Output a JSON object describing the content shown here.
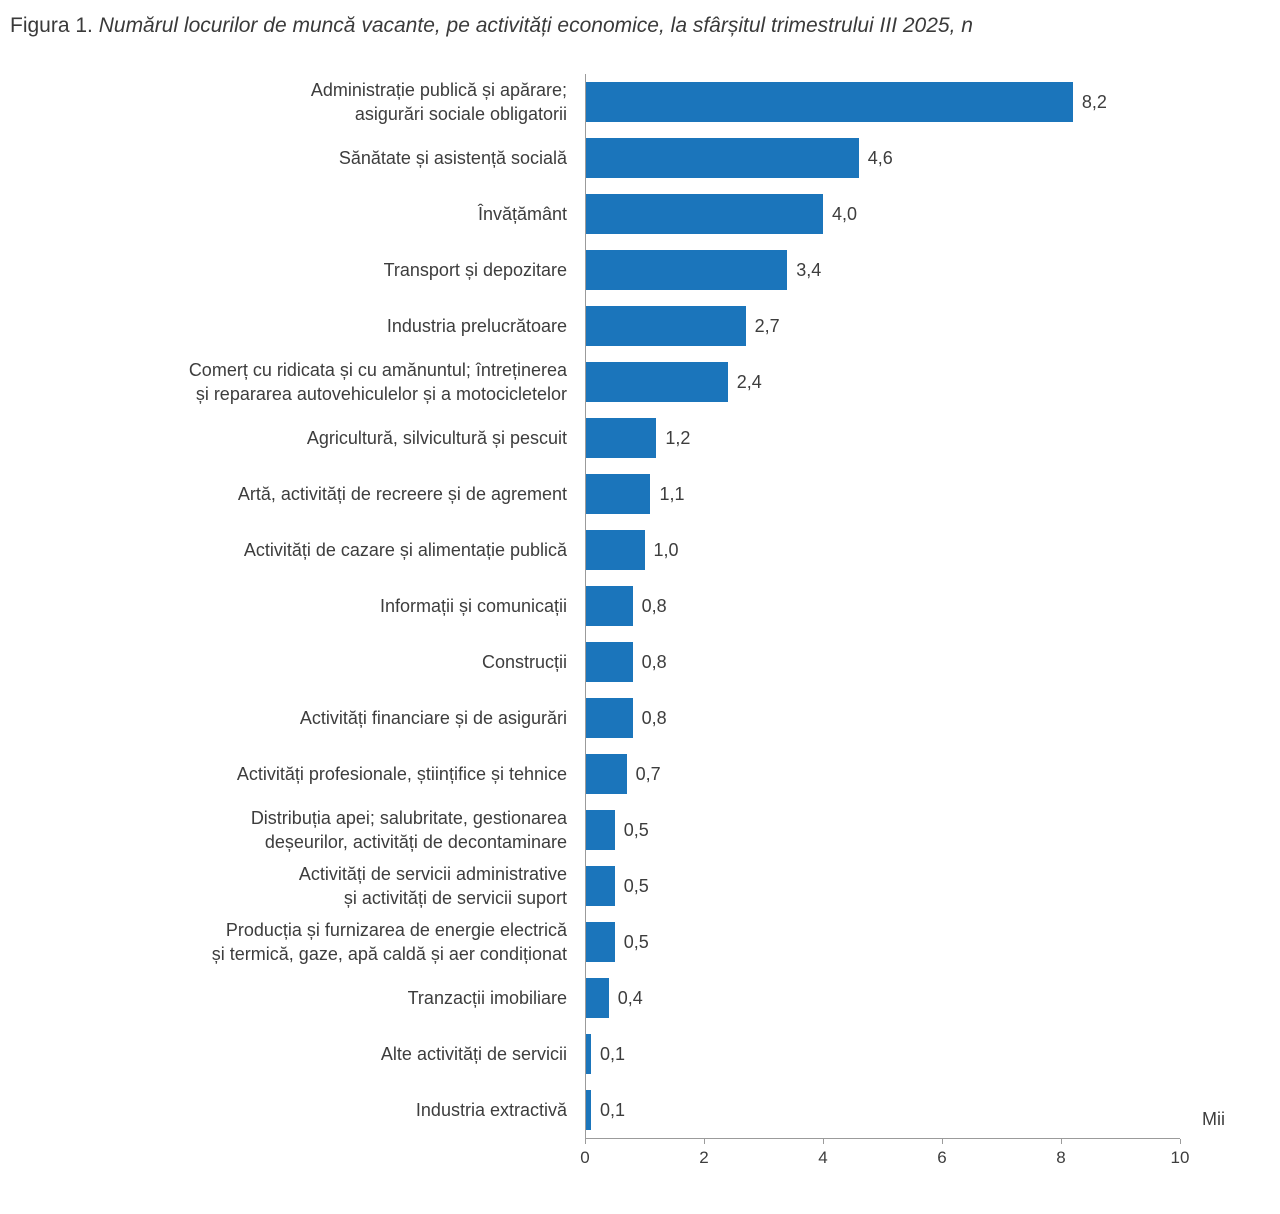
{
  "figure": {
    "prefix": "Figura 1. ",
    "title": "Numărul locurilor de muncă vacante, pe activități economice, la sfârșitul trimestrului III 2025, n"
  },
  "colors": {
    "bar": "#1b75bb",
    "axis": "#9b9b9b",
    "text": "#3d3d3d"
  },
  "chart_data": {
    "type": "bar",
    "orientation": "horizontal",
    "title": "Numărul locurilor de muncă vacante, pe activități economice, la sfârșitul trimestrului III 2025",
    "xlabel": "Mii",
    "ylabel": "",
    "xlim": [
      0,
      10
    ],
    "ticks": [
      0,
      2,
      4,
      6,
      8,
      10
    ],
    "grid": false,
    "legend": false,
    "rows": [
      {
        "label_lines": [
          "Administrație publică și apărare;",
          "asigurări sociale obligatorii"
        ],
        "value": 8.2,
        "display": "8,2"
      },
      {
        "label_lines": [
          "Sănătate și asistență socială"
        ],
        "value": 4.6,
        "display": "4,6"
      },
      {
        "label_lines": [
          "Învățământ"
        ],
        "value": 4.0,
        "display": "4,0"
      },
      {
        "label_lines": [
          "Transport și depozitare"
        ],
        "value": 3.4,
        "display": "3,4"
      },
      {
        "label_lines": [
          "Industria prelucrătoare"
        ],
        "value": 2.7,
        "display": "2,7"
      },
      {
        "label_lines": [
          "Comerț cu ridicata și cu amănuntul; întreținerea",
          "și repararea autovehiculelor și a motocicletelor"
        ],
        "value": 2.4,
        "display": "2,4"
      },
      {
        "label_lines": [
          "Agricultură, silvicultură și pescuit"
        ],
        "value": 1.2,
        "display": "1,2"
      },
      {
        "label_lines": [
          "Artă, activități de recreere și de agrement"
        ],
        "value": 1.1,
        "display": "1,1"
      },
      {
        "label_lines": [
          "Activități de cazare și alimentație publică"
        ],
        "value": 1.0,
        "display": "1,0"
      },
      {
        "label_lines": [
          "Informații și comunicații"
        ],
        "value": 0.8,
        "display": "0,8"
      },
      {
        "label_lines": [
          "Construcții"
        ],
        "value": 0.8,
        "display": "0,8"
      },
      {
        "label_lines": [
          "Activități financiare și de asigurări"
        ],
        "value": 0.8,
        "display": "0,8"
      },
      {
        "label_lines": [
          "Activități profesionale, științifice și tehnice"
        ],
        "value": 0.7,
        "display": "0,7"
      },
      {
        "label_lines": [
          "Distribuția apei; salubritate, gestionarea",
          "deșeurilor, activități de decontaminare"
        ],
        "value": 0.5,
        "display": "0,5"
      },
      {
        "label_lines": [
          "Activități de servicii administrative",
          "și activități de servicii suport"
        ],
        "value": 0.5,
        "display": "0,5"
      },
      {
        "label_lines": [
          "Producția și furnizarea de energie electrică",
          "și termică, gaze, apă caldă și aer condiționat"
        ],
        "value": 0.5,
        "display": "0,5"
      },
      {
        "label_lines": [
          "Tranzacții imobiliare"
        ],
        "value": 0.4,
        "display": "0,4"
      },
      {
        "label_lines": [
          "Alte activități de servicii"
        ],
        "value": 0.1,
        "display": "0,1"
      },
      {
        "label_lines": [
          "Industria extractivă"
        ],
        "value": 0.1,
        "display": "0,1"
      }
    ]
  }
}
